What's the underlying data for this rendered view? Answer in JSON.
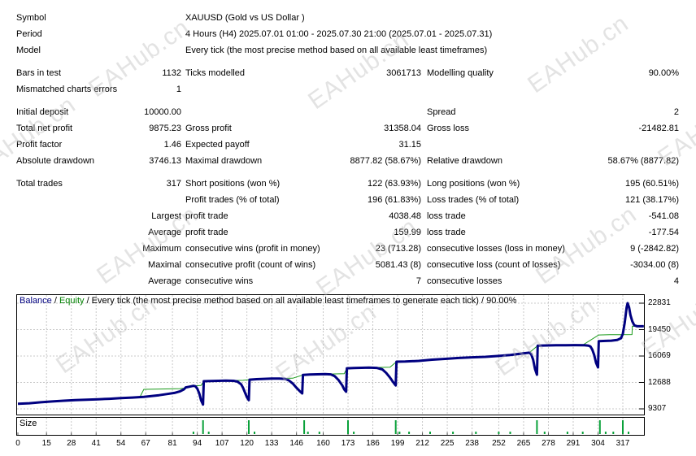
{
  "report": {
    "rows": [
      {
        "l1": "Symbol",
        "v1": "",
        "l2": "XAUUSD (Gold vs US Dollar )",
        "v2": "",
        "l3": "",
        "v3": "",
        "span": true,
        "gap": false
      },
      {
        "l1": "Period",
        "v1": "",
        "l2": "4 Hours (H4) 2025.07.01 01:00 - 2025.07.30 21:00 (2025.07.01 - 2025.07.31)",
        "v2": "",
        "l3": "",
        "v3": "",
        "span": true,
        "gap": false
      },
      {
        "l1": "Model",
        "v1": "",
        "l2": "Every tick (the most precise method based on all available least timeframes)",
        "v2": "",
        "l3": "",
        "v3": "",
        "span": true,
        "gap": false
      },
      {
        "l1": "Bars in test",
        "v1": "1132",
        "l2": "Ticks modelled",
        "v2": "3061713",
        "l3": "Modelling quality",
        "v3": "90.00%",
        "span": false,
        "gap": true
      },
      {
        "l1": "Mismatched charts errors",
        "v1": "1",
        "l2": "",
        "v2": "",
        "l3": "",
        "v3": "",
        "span": false,
        "gap": false
      },
      {
        "l1": "Initial deposit",
        "v1": "10000.00",
        "l2": "",
        "v2": "",
        "l3": "Spread",
        "v3": "2",
        "span": false,
        "gap": true
      },
      {
        "l1": "Total net profit",
        "v1": "9875.23",
        "l2": "Gross profit",
        "v2": "31358.04",
        "l3": "Gross loss",
        "v3": "-21482.81",
        "span": false,
        "gap": false
      },
      {
        "l1": "Profit factor",
        "v1": "1.46",
        "l2": "Expected payoff",
        "v2": "31.15",
        "l3": "",
        "v3": "",
        "span": false,
        "gap": false
      },
      {
        "l1": "Absolute drawdown",
        "v1": "3746.13",
        "l2": "Maximal drawdown",
        "v2": "8877.82 (58.67%)",
        "l3": "Relative drawdown",
        "v3": "58.67% (8877.82)",
        "span": false,
        "gap": false
      },
      {
        "l1": "Total trades",
        "v1": "317",
        "l2": "Short positions (won %)",
        "v2": "122 (63.93%)",
        "l3": "Long positions (won %)",
        "v3": "195 (60.51%)",
        "span": false,
        "gap": true
      },
      {
        "l1": "",
        "v1": "",
        "l2": "Profit trades (% of total)",
        "v2": "196 (61.83%)",
        "l3": "Loss trades (% of total)",
        "v3": "121 (38.17%)",
        "span": false,
        "gap": false
      },
      {
        "l1": "",
        "v1": "Largest",
        "l2": "profit trade",
        "v2": "4038.48",
        "l3": "loss trade",
        "v3": "-541.08",
        "span": false,
        "gap": false
      },
      {
        "l1": "",
        "v1": "Average",
        "l2": "profit trade",
        "v2": "159.99",
        "l3": "loss trade",
        "v3": "-177.54",
        "span": false,
        "gap": false
      },
      {
        "l1": "",
        "v1": "Maximum",
        "l2": "consecutive wins (profit in money)",
        "v2": "23 (713.28)",
        "l3": "consecutive losses (loss in money)",
        "v3": "9 (-2842.82)",
        "span": false,
        "gap": false
      },
      {
        "l1": "",
        "v1": "Maximal",
        "l2": "consecutive profit (count of wins)",
        "v2": "5081.43 (8)",
        "l3": "consecutive loss (count of losses)",
        "v3": "-3034.00 (8)",
        "span": false,
        "gap": false
      },
      {
        "l1": "",
        "v1": "Average",
        "l2": "consecutive wins",
        "v2": "7",
        "l3": "consecutive losses",
        "v3": "4",
        "span": false,
        "gap": false
      }
    ]
  },
  "chart_data": {
    "type": "line",
    "legend": {
      "balance": "Balance",
      "sep1": " / ",
      "equity": "Equity",
      "rest": " / Every tick (the most precise method based on all available least timeframes to generate each tick) / 90.00%"
    },
    "xlabel": "",
    "ylabel": "",
    "x_ticks": [
      0,
      15,
      28,
      41,
      54,
      67,
      81,
      94,
      107,
      120,
      133,
      146,
      160,
      173,
      186,
      199,
      212,
      225,
      238,
      252,
      265,
      278,
      291,
      304,
      317
    ],
    "y_ticks": [
      22831,
      19450,
      16069,
      12688,
      9307
    ],
    "x_range": [
      0,
      328
    ],
    "y_range": [
      9307,
      22831
    ],
    "grid": true,
    "colors": {
      "balance": "#000080",
      "equity": "#1a9a1a",
      "grid": "#c8c8c8",
      "size_bar": "#0aa13a"
    },
    "series": [
      {
        "name": "Equity",
        "color": "#1a9a1a",
        "width": 1,
        "points": [
          [
            0,
            9950
          ],
          [
            10,
            10120
          ],
          [
            20,
            10320
          ],
          [
            30,
            10420
          ],
          [
            40,
            10510
          ],
          [
            50,
            10620
          ],
          [
            60,
            10750
          ],
          [
            64,
            10850
          ],
          [
            66,
            11800
          ],
          [
            72,
            11830
          ],
          [
            80,
            11870
          ],
          [
            85,
            11900
          ],
          [
            87,
            11950
          ],
          [
            90,
            12150
          ],
          [
            92,
            12250
          ],
          [
            96,
            12300
          ],
          [
            97.4,
            12840
          ],
          [
            105,
            12900
          ],
          [
            112,
            12930
          ],
          [
            118,
            12960
          ],
          [
            121.4,
            13040
          ],
          [
            129,
            13160
          ],
          [
            137,
            13200
          ],
          [
            144,
            13230
          ],
          [
            149.4,
            13650
          ],
          [
            157,
            13740
          ],
          [
            164,
            13770
          ],
          [
            171,
            13800
          ],
          [
            172.4,
            14500
          ],
          [
            180,
            14570
          ],
          [
            188,
            14600
          ],
          [
            195,
            14630
          ],
          [
            198.4,
            15340
          ],
          [
            206,
            15420
          ],
          [
            213,
            15550
          ],
          [
            220,
            15650
          ],
          [
            227,
            15780
          ],
          [
            234,
            15870
          ],
          [
            241,
            15940
          ],
          [
            248,
            16020
          ],
          [
            254,
            16130
          ],
          [
            260,
            16280
          ],
          [
            265,
            16420
          ],
          [
            268,
            16500
          ],
          [
            272.4,
            17400
          ],
          [
            280,
            17440
          ],
          [
            288,
            17460
          ],
          [
            296,
            17470
          ],
          [
            304.4,
            18760
          ],
          [
            310,
            18790
          ],
          [
            315,
            18810
          ],
          [
            321.8,
            18820
          ],
          [
            322,
            19875
          ],
          [
            328,
            19875
          ]
        ]
      },
      {
        "name": "Balance",
        "color": "#000080",
        "width": 3,
        "points": [
          [
            0,
            9950
          ],
          [
            6,
            10030
          ],
          [
            12,
            10150
          ],
          [
            18,
            10250
          ],
          [
            24,
            10350
          ],
          [
            30,
            10420
          ],
          [
            36,
            10480
          ],
          [
            42,
            10530
          ],
          [
            48,
            10600
          ],
          [
            54,
            10680
          ],
          [
            60,
            10750
          ],
          [
            66,
            10850
          ],
          [
            70,
            10950
          ],
          [
            74,
            11050
          ],
          [
            78,
            11200
          ],
          [
            82,
            11350
          ],
          [
            85,
            11550
          ],
          [
            87,
            11800
          ],
          [
            88,
            12050
          ],
          [
            90,
            12150
          ],
          [
            92,
            12250
          ],
          [
            93,
            12200
          ],
          [
            94,
            11900
          ],
          [
            95,
            11300
          ],
          [
            96,
            10400
          ],
          [
            97,
            9860
          ],
          [
            97.4,
            12840
          ],
          [
            101,
            12880
          ],
          [
            105,
            12900
          ],
          [
            109,
            12920
          ],
          [
            113,
            12900
          ],
          [
            115,
            12800
          ],
          [
            117,
            12450
          ],
          [
            118,
            12000
          ],
          [
            119,
            11400
          ],
          [
            120,
            10800
          ],
          [
            121,
            10420
          ],
          [
            121.4,
            13040
          ],
          [
            125,
            13100
          ],
          [
            129,
            13150
          ],
          [
            133,
            13180
          ],
          [
            137,
            13190
          ],
          [
            140,
            13150
          ],
          [
            142,
            12950
          ],
          [
            144,
            12550
          ],
          [
            146,
            12000
          ],
          [
            148,
            11500
          ],
          [
            149,
            11283
          ],
          [
            149.4,
            13650
          ],
          [
            153,
            13700
          ],
          [
            157,
            13730
          ],
          [
            161,
            13750
          ],
          [
            164,
            13720
          ],
          [
            166,
            13500
          ],
          [
            168,
            13000
          ],
          [
            170,
            12300
          ],
          [
            171,
            11800
          ],
          [
            172,
            11500
          ],
          [
            172.4,
            14500
          ],
          [
            176,
            14530
          ],
          [
            180,
            14560
          ],
          [
            184,
            14580
          ],
          [
            188,
            14550
          ],
          [
            191,
            14350
          ],
          [
            193,
            13900
          ],
          [
            195,
            13300
          ],
          [
            197,
            12600
          ],
          [
            198,
            12300
          ],
          [
            198.4,
            15340
          ],
          [
            203,
            15360
          ],
          [
            210,
            15450
          ],
          [
            217,
            15600
          ],
          [
            224,
            15700
          ],
          [
            231,
            15820
          ],
          [
            238,
            15900
          ],
          [
            245,
            15970
          ],
          [
            252,
            16080
          ],
          [
            258,
            16200
          ],
          [
            263,
            16350
          ],
          [
            268,
            16500
          ],
          [
            269,
            16300
          ],
          [
            270,
            15600
          ],
          [
            271,
            14400
          ],
          [
            272,
            13675
          ],
          [
            272.4,
            17400
          ],
          [
            277,
            17420
          ],
          [
            282,
            17440
          ],
          [
            287,
            17450
          ],
          [
            292,
            17460
          ],
          [
            297,
            17450
          ],
          [
            299,
            17400
          ],
          [
            300,
            17300
          ],
          [
            301,
            16900
          ],
          [
            302,
            16200
          ],
          [
            303,
            15200
          ],
          [
            304,
            14610
          ],
          [
            304.4,
            17970
          ],
          [
            308,
            18000
          ],
          [
            311,
            18030
          ],
          [
            314,
            18120
          ],
          [
            316,
            18350
          ],
          [
            317,
            18900
          ],
          [
            318,
            20300
          ],
          [
            319,
            22300
          ],
          [
            319.5,
            22831
          ],
          [
            320.3,
            22300
          ],
          [
            321,
            21300
          ],
          [
            322,
            20500
          ],
          [
            323,
            20000
          ],
          [
            324.5,
            19880
          ],
          [
            328,
            19875
          ]
        ]
      }
    ],
    "size_panel": {
      "label": "Size",
      "tall_bars": [
        97,
        121,
        150,
        173,
        198,
        272,
        305,
        317
      ],
      "small_bars": [
        92,
        100,
        124,
        152,
        158,
        176,
        200,
        205,
        216,
        228,
        240,
        252,
        258,
        276,
        288,
        296,
        308,
        312,
        320
      ]
    }
  },
  "watermark": {
    "text": "EAHub.cn"
  }
}
